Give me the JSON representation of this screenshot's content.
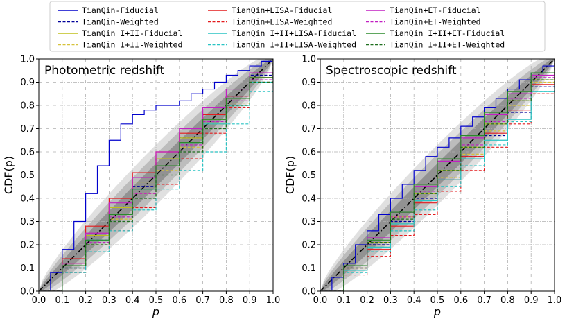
{
  "chart_data": {
    "type": "line",
    "legend_placement": "top",
    "legend": [
      {
        "name": "TianQin-Fiducial",
        "color": "#0000cc",
        "dashed": false
      },
      {
        "name": "TianQin-Weighted",
        "color": "#00009a",
        "dashed": true
      },
      {
        "name": "TianQin I+II-Fiducial",
        "color": "#bfbf1a",
        "dashed": false
      },
      {
        "name": "TianQin I+II-Weighted",
        "color": "#d6c23a",
        "dashed": true
      },
      {
        "name": "TianQin+LISA-Fiducial",
        "color": "#e41a1c",
        "dashed": false
      },
      {
        "name": "TianQin+LISA-Weighted",
        "color": "#e41a1c",
        "dashed": true
      },
      {
        "name": "TianQin I+II+LISA-Fiducial",
        "color": "#29c4c4",
        "dashed": false
      },
      {
        "name": "TianQin I+II+LISA-Weighted",
        "color": "#29c4c4",
        "dashed": true
      },
      {
        "name": "TianQin+ET-Fiducial",
        "color": "#c21fc2",
        "dashed": false
      },
      {
        "name": "TianQin+ET-Weighted",
        "color": "#c21fc2",
        "dashed": true
      },
      {
        "name": "TianQin I+II+ET-Fiducial",
        "color": "#2a8a2a",
        "dashed": false
      },
      {
        "name": "TianQin I+II+ET-Weighted",
        "color": "#1f6f1f",
        "dashed": true
      }
    ],
    "panels": [
      {
        "title": "Photometric redshift",
        "xlabel": "p",
        "ylabel": "CDF(p)",
        "xlim": [
          0.0,
          1.0
        ],
        "ylim": [
          0.0,
          1.0
        ],
        "xticks": [
          "0.0",
          "0.1",
          "0.2",
          "0.3",
          "0.4",
          "0.5",
          "0.6",
          "0.7",
          "0.8",
          "0.9",
          "1.0"
        ],
        "yticks": [
          "0.0",
          "0.1",
          "0.2",
          "0.3",
          "0.4",
          "0.5",
          "0.6",
          "0.7",
          "0.8",
          "0.9",
          "1.0"
        ],
        "grid": true,
        "band_half_widths": [
          0.05,
          0.09,
          0.13
        ],
        "series": [
          {
            "name": "TianQin-Fiducial",
            "x": [
              0,
              0.05,
              0.1,
              0.15,
              0.2,
              0.25,
              0.3,
              0.35,
              0.4,
              0.45,
              0.5,
              0.55,
              0.6,
              0.65,
              0.7,
              0.75,
              0.8,
              0.85,
              0.9,
              0.95,
              1.0
            ],
            "y": [
              0,
              0.08,
              0.18,
              0.3,
              0.42,
              0.54,
              0.65,
              0.72,
              0.76,
              0.78,
              0.8,
              0.8,
              0.82,
              0.85,
              0.87,
              0.9,
              0.93,
              0.95,
              0.97,
              0.99,
              1.0
            ]
          },
          {
            "name": "TianQin-Weighted",
            "x": [
              0,
              0.1,
              0.2,
              0.3,
              0.4,
              0.5,
              0.6,
              0.7,
              0.8,
              0.9,
              1.0
            ],
            "y": [
              0,
              0.1,
              0.22,
              0.33,
              0.45,
              0.57,
              0.66,
              0.74,
              0.84,
              0.93,
              1.0
            ]
          },
          {
            "name": "TianQin I+II-Fiducial",
            "x": [
              0,
              0.1,
              0.2,
              0.3,
              0.4,
              0.5,
              0.6,
              0.7,
              0.8,
              0.9,
              1.0
            ],
            "y": [
              0,
              0.12,
              0.24,
              0.36,
              0.47,
              0.57,
              0.66,
              0.74,
              0.83,
              0.92,
              1.0
            ]
          },
          {
            "name": "TianQin I+II-Weighted",
            "x": [
              0,
              0.1,
              0.2,
              0.3,
              0.4,
              0.5,
              0.6,
              0.7,
              0.8,
              0.9,
              1.0
            ],
            "y": [
              0,
              0.1,
              0.2,
              0.31,
              0.42,
              0.52,
              0.62,
              0.72,
              0.81,
              0.9,
              1.0
            ]
          },
          {
            "name": "TianQin+LISA-Fiducial",
            "x": [
              0,
              0.1,
              0.2,
              0.3,
              0.4,
              0.5,
              0.6,
              0.7,
              0.8,
              0.9,
              1.0
            ],
            "y": [
              0,
              0.14,
              0.28,
              0.4,
              0.51,
              0.6,
              0.68,
              0.76,
              0.84,
              0.92,
              1.0
            ]
          },
          {
            "name": "TianQin+LISA-Weighted",
            "x": [
              0,
              0.1,
              0.2,
              0.3,
              0.4,
              0.5,
              0.6,
              0.7,
              0.8,
              0.9,
              1.0
            ],
            "y": [
              0,
              0.08,
              0.17,
              0.26,
              0.36,
              0.46,
              0.57,
              0.68,
              0.79,
              0.9,
              1.0
            ]
          },
          {
            "name": "TianQin I+II+LISA-Fiducial",
            "x": [
              0,
              0.1,
              0.2,
              0.3,
              0.4,
              0.5,
              0.6,
              0.7,
              0.8,
              0.9,
              1.0
            ],
            "y": [
              0,
              0.1,
              0.22,
              0.33,
              0.44,
              0.54,
              0.64,
              0.72,
              0.8,
              0.9,
              1.0
            ]
          },
          {
            "name": "TianQin I+II+LISA-Weighted",
            "x": [
              0,
              0.1,
              0.2,
              0.3,
              0.4,
              0.5,
              0.6,
              0.7,
              0.8,
              0.9,
              1.0
            ],
            "y": [
              0,
              0.08,
              0.17,
              0.26,
              0.35,
              0.44,
              0.52,
              0.6,
              0.72,
              0.86,
              1.0
            ]
          },
          {
            "name": "TianQin+ET-Fiducial",
            "x": [
              0,
              0.1,
              0.2,
              0.3,
              0.4,
              0.5,
              0.6,
              0.7,
              0.8,
              0.9,
              1.0
            ],
            "y": [
              0,
              0.12,
              0.25,
              0.38,
              0.49,
              0.6,
              0.7,
              0.79,
              0.87,
              0.94,
              1.0
            ]
          },
          {
            "name": "TianQin+ET-Weighted",
            "x": [
              0,
              0.1,
              0.2,
              0.3,
              0.4,
              0.5,
              0.6,
              0.7,
              0.8,
              0.9,
              1.0
            ],
            "y": [
              0,
              0.1,
              0.21,
              0.32,
              0.42,
              0.53,
              0.63,
              0.73,
              0.82,
              0.91,
              1.0
            ]
          },
          {
            "name": "TianQin I+II+ET-Fiducial",
            "x": [
              0,
              0.1,
              0.2,
              0.3,
              0.4,
              0.5,
              0.6,
              0.7,
              0.8,
              0.9,
              1.0
            ],
            "y": [
              0,
              0.11,
              0.22,
              0.33,
              0.44,
              0.54,
              0.64,
              0.74,
              0.83,
              0.92,
              1.0
            ]
          },
          {
            "name": "TianQin I+II+ET-Weighted",
            "x": [
              0,
              0.1,
              0.2,
              0.3,
              0.4,
              0.5,
              0.6,
              0.7,
              0.8,
              0.9,
              1.0
            ],
            "y": [
              0,
              0.1,
              0.2,
              0.3,
              0.4,
              0.5,
              0.6,
              0.7,
              0.8,
              0.9,
              1.0
            ]
          }
        ]
      },
      {
        "title": "Spectroscopic redshift",
        "xlabel": "p",
        "ylabel": "CDF(p)",
        "xlim": [
          0.0,
          1.0
        ],
        "ylim": [
          0.0,
          1.0
        ],
        "xticks": [
          "0.0",
          "0.1",
          "0.2",
          "0.3",
          "0.4",
          "0.5",
          "0.6",
          "0.7",
          "0.8",
          "0.9",
          "1.0"
        ],
        "yticks": [
          "0.0",
          "0.1",
          "0.2",
          "0.3",
          "0.4",
          "0.5",
          "0.6",
          "0.7",
          "0.8",
          "0.9",
          "1.0"
        ],
        "grid": true,
        "band_half_widths": [
          0.05,
          0.09,
          0.13
        ],
        "series": [
          {
            "name": "TianQin-Fiducial",
            "x": [
              0,
              0.05,
              0.1,
              0.15,
              0.2,
              0.25,
              0.3,
              0.35,
              0.4,
              0.45,
              0.5,
              0.55,
              0.6,
              0.65,
              0.7,
              0.75,
              0.8,
              0.85,
              0.9,
              0.95,
              1.0
            ],
            "y": [
              0,
              0.06,
              0.12,
              0.2,
              0.26,
              0.33,
              0.4,
              0.46,
              0.52,
              0.58,
              0.62,
              0.66,
              0.71,
              0.75,
              0.79,
              0.83,
              0.87,
              0.91,
              0.94,
              0.97,
              1.0
            ]
          },
          {
            "name": "TianQin-Weighted",
            "x": [
              0,
              0.1,
              0.2,
              0.3,
              0.4,
              0.5,
              0.6,
              0.7,
              0.8,
              0.9,
              1.0
            ],
            "y": [
              0,
              0.1,
              0.2,
              0.3,
              0.4,
              0.49,
              0.58,
              0.67,
              0.77,
              0.88,
              1.0
            ]
          },
          {
            "name": "TianQin I+II-Fiducial",
            "x": [
              0,
              0.1,
              0.2,
              0.3,
              0.4,
              0.5,
              0.6,
              0.7,
              0.8,
              0.9,
              1.0
            ],
            "y": [
              0,
              0.1,
              0.21,
              0.32,
              0.42,
              0.52,
              0.62,
              0.72,
              0.82,
              0.91,
              1.0
            ]
          },
          {
            "name": "TianQin I+II-Weighted",
            "x": [
              0,
              0.1,
              0.2,
              0.3,
              0.4,
              0.5,
              0.6,
              0.7,
              0.8,
              0.9,
              1.0
            ],
            "y": [
              0,
              0.09,
              0.19,
              0.29,
              0.39,
              0.49,
              0.59,
              0.69,
              0.8,
              0.9,
              1.0
            ]
          },
          {
            "name": "TianQin+LISA-Fiducial",
            "x": [
              0,
              0.1,
              0.2,
              0.3,
              0.4,
              0.5,
              0.6,
              0.7,
              0.8,
              0.9,
              1.0
            ],
            "y": [
              0,
              0.09,
              0.18,
              0.28,
              0.38,
              0.48,
              0.58,
              0.68,
              0.78,
              0.89,
              1.0
            ]
          },
          {
            "name": "TianQin+LISA-Weighted",
            "x": [
              0,
              0.1,
              0.2,
              0.3,
              0.4,
              0.5,
              0.6,
              0.7,
              0.8,
              0.9,
              1.0
            ],
            "y": [
              0,
              0.07,
              0.15,
              0.24,
              0.33,
              0.43,
              0.52,
              0.62,
              0.72,
              0.85,
              1.0
            ]
          },
          {
            "name": "TianQin I+II+LISA-Fiducial",
            "x": [
              0,
              0.1,
              0.2,
              0.3,
              0.4,
              0.5,
              0.6,
              0.7,
              0.8,
              0.9,
              1.0
            ],
            "y": [
              0,
              0.09,
              0.19,
              0.29,
              0.39,
              0.48,
              0.57,
              0.65,
              0.74,
              0.86,
              1.0
            ]
          },
          {
            "name": "TianQin I+II+LISA-Weighted",
            "x": [
              0,
              0.1,
              0.2,
              0.3,
              0.4,
              0.5,
              0.6,
              0.7,
              0.8,
              0.9,
              1.0
            ],
            "y": [
              0,
              0.08,
              0.17,
              0.26,
              0.35,
              0.45,
              0.54,
              0.63,
              0.73,
              0.86,
              1.0
            ]
          },
          {
            "name": "TianQin+ET-Fiducial",
            "x": [
              0,
              0.1,
              0.2,
              0.3,
              0.4,
              0.5,
              0.6,
              0.7,
              0.8,
              0.9,
              1.0
            ],
            "y": [
              0,
              0.11,
              0.23,
              0.34,
              0.45,
              0.56,
              0.66,
              0.76,
              0.85,
              0.93,
              1.0
            ]
          },
          {
            "name": "TianQin+ET-Weighted",
            "x": [
              0,
              0.1,
              0.2,
              0.3,
              0.4,
              0.5,
              0.6,
              0.7,
              0.8,
              0.9,
              1.0
            ],
            "y": [
              0,
              0.1,
              0.21,
              0.32,
              0.43,
              0.53,
              0.63,
              0.73,
              0.83,
              0.92,
              1.0
            ]
          },
          {
            "name": "TianQin I+II+ET-Fiducial",
            "x": [
              0,
              0.1,
              0.2,
              0.3,
              0.4,
              0.5,
              0.6,
              0.7,
              0.8,
              0.9,
              1.0
            ],
            "y": [
              0,
              0.11,
              0.22,
              0.34,
              0.46,
              0.57,
              0.67,
              0.77,
              0.86,
              0.94,
              1.0
            ]
          },
          {
            "name": "TianQin I+II+ET-Weighted",
            "x": [
              0,
              0.1,
              0.2,
              0.3,
              0.4,
              0.5,
              0.6,
              0.7,
              0.8,
              0.9,
              1.0
            ],
            "y": [
              0,
              0.1,
              0.21,
              0.31,
              0.42,
              0.52,
              0.62,
              0.72,
              0.82,
              0.91,
              1.0
            ]
          }
        ]
      }
    ]
  }
}
